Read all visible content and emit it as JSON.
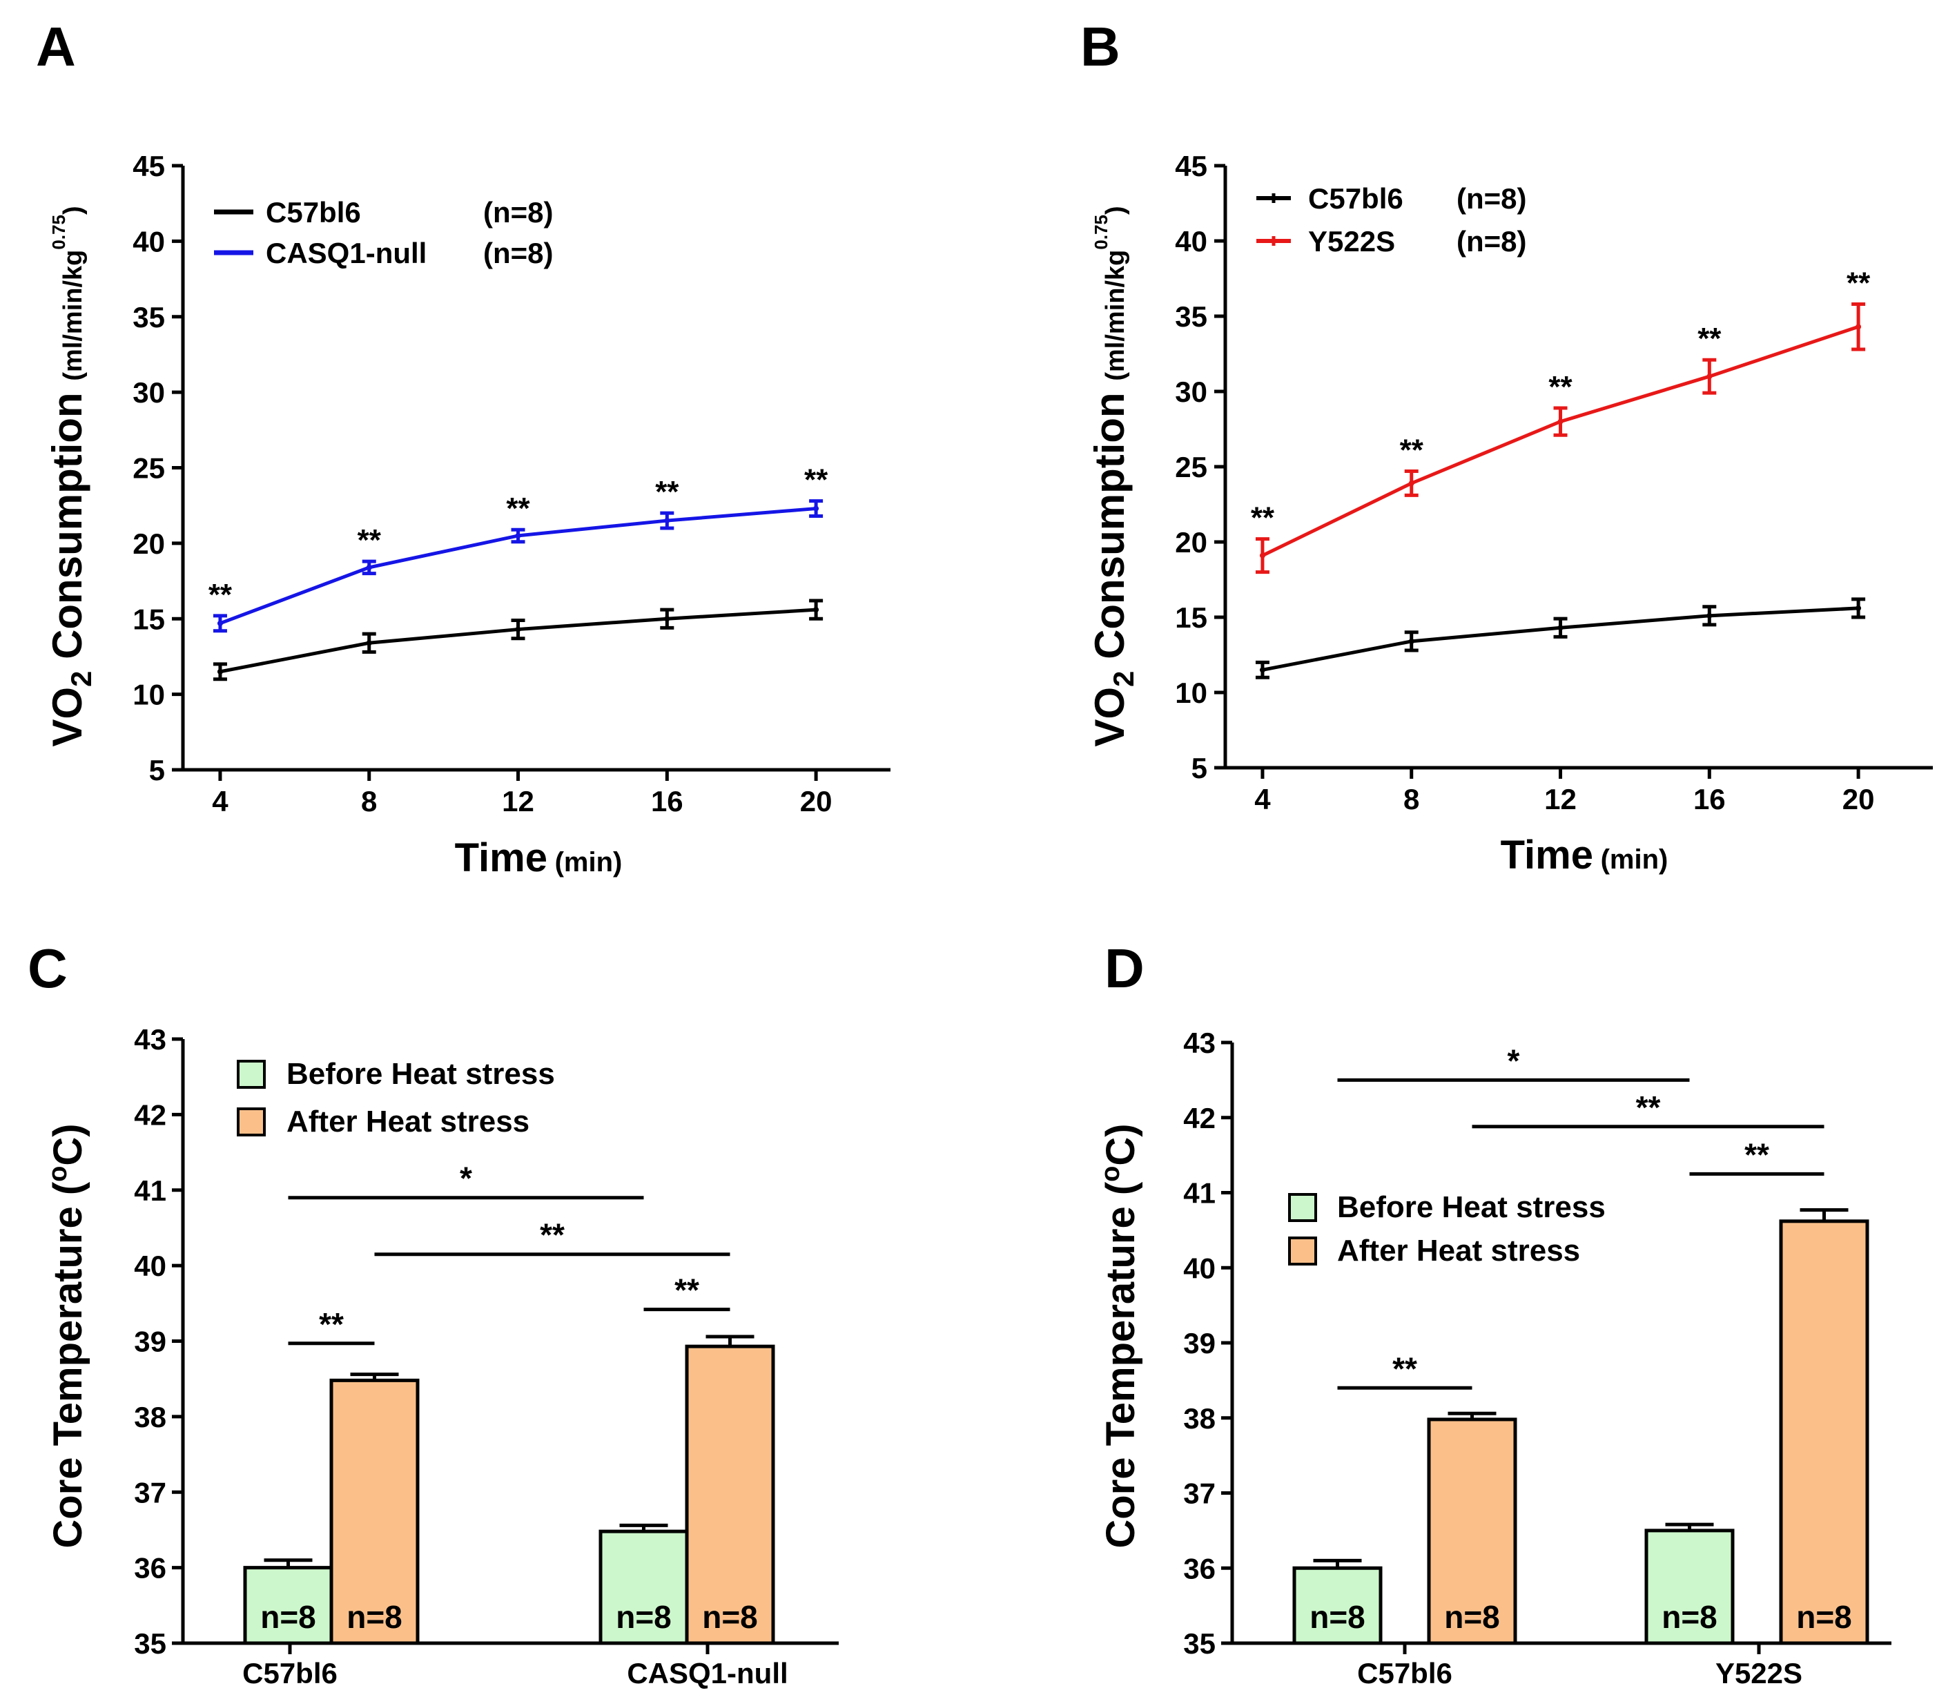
{
  "colors": {
    "wt": "#000000",
    "casq1": "#1515e6",
    "y522s": "#e81818",
    "before_fill": "#ccf7cc",
    "after_fill": "#fbc08a",
    "axis": "#000000"
  },
  "chart_data": [
    {
      "panel": "A",
      "type": "line",
      "ylabel_main": "VO",
      "ylabel_sub": "2",
      "ylabel_rest": " Consumption ",
      "ylabel_units": "(ml/min/kg",
      "ylabel_units_sup": "0.75",
      "ylabel_units_close": ")",
      "xlabel_main": "Time",
      "xlabel_units": "(min)",
      "x": [
        4,
        8,
        12,
        16,
        20
      ],
      "xlim": [
        3,
        22
      ],
      "ylim": [
        5,
        45
      ],
      "yticks": [
        5,
        10,
        15,
        20,
        25,
        30,
        35,
        40,
        45
      ],
      "xticks": [
        4,
        8,
        12,
        16,
        20
      ],
      "series": [
        {
          "name": "C57bl6",
          "n": "(n=8)",
          "color_key": "wt",
          "values": [
            11.5,
            13.4,
            14.3,
            15.0,
            15.6
          ],
          "errors": [
            0.5,
            0.6,
            0.6,
            0.6,
            0.6
          ]
        },
        {
          "name": "CASQ1-null",
          "n": "(n=8)",
          "color_key": "casq1",
          "values": [
            14.7,
            18.4,
            20.5,
            21.5,
            22.3
          ],
          "errors": [
            0.5,
            0.4,
            0.4,
            0.5,
            0.5
          ]
        }
      ],
      "significance": [
        "**",
        "**",
        "**",
        "**",
        "**"
      ]
    },
    {
      "panel": "B",
      "type": "line",
      "ylabel_main": "VO",
      "ylabel_sub": "2",
      "ylabel_rest": " Consumption ",
      "ylabel_units": "(ml/min/kg",
      "ylabel_units_sup": "0.75",
      "ylabel_units_close": ")",
      "xlabel_main": "Time",
      "xlabel_units": "(min)",
      "x": [
        4,
        8,
        12,
        16,
        20
      ],
      "xlim": [
        3,
        22
      ],
      "ylim": [
        5,
        45
      ],
      "yticks": [
        5,
        10,
        15,
        20,
        25,
        30,
        35,
        40,
        45
      ],
      "xticks": [
        4,
        8,
        12,
        16,
        20
      ],
      "series": [
        {
          "name": "C57bl6",
          "n": "(n=8)",
          "color_key": "wt",
          "values": [
            11.5,
            13.4,
            14.3,
            15.1,
            15.6
          ],
          "errors": [
            0.5,
            0.6,
            0.6,
            0.6,
            0.6
          ]
        },
        {
          "name": "Y522S",
          "n": "(n=8)",
          "color_key": "y522s",
          "values": [
            19.1,
            23.9,
            28.0,
            31.0,
            34.3
          ],
          "errors": [
            1.1,
            0.8,
            0.9,
            1.1,
            1.5
          ]
        }
      ],
      "significance": [
        "**",
        "**",
        "**",
        "**",
        "**"
      ]
    },
    {
      "panel": "C",
      "type": "bar",
      "ylabel": "Core Temperature (°C)",
      "ylabel_pre": "Core Temperature (",
      "ylabel_deg": "o",
      "ylabel_post": "C)",
      "ylim": [
        35,
        43
      ],
      "yticks": [
        35,
        36,
        37,
        38,
        39,
        40,
        41,
        42,
        43
      ],
      "categories": [
        "C57bl6",
        "CASQ1-null"
      ],
      "series": [
        {
          "name": "Before Heat stress",
          "color_key": "before_fill",
          "values": [
            36.0,
            36.48
          ],
          "errors": [
            0.1,
            0.08
          ],
          "n_labels": [
            "n=8",
            "n=8"
          ]
        },
        {
          "name": "After Heat stress",
          "color_key": "after_fill",
          "values": [
            38.48,
            38.93
          ],
          "errors": [
            0.08,
            0.13
          ],
          "n_labels": [
            "n=8",
            "n=8"
          ]
        }
      ],
      "brackets": [
        {
          "from": [
            0,
            0
          ],
          "to": [
            0,
            1
          ],
          "y": 38.97,
          "label": "**"
        },
        {
          "from": [
            1,
            0
          ],
          "to": [
            1,
            1
          ],
          "y": 39.42,
          "label": "**"
        },
        {
          "from": [
            0,
            0
          ],
          "to": [
            1,
            0
          ],
          "y": 40.9,
          "label": "*"
        },
        {
          "from": [
            0,
            1
          ],
          "to": [
            1,
            1
          ],
          "y": 40.15,
          "label": "**"
        }
      ]
    },
    {
      "panel": "D",
      "type": "bar",
      "ylabel": "Core Temperature (°C)",
      "ylabel_pre": "Core Temperature (",
      "ylabel_deg": "o",
      "ylabel_post": "C)",
      "ylim": [
        35,
        43
      ],
      "yticks": [
        35,
        36,
        37,
        38,
        39,
        40,
        41,
        42,
        43
      ],
      "categories": [
        "C57bl6",
        "Y522S"
      ],
      "series": [
        {
          "name": "Before Heat stress",
          "color_key": "before_fill",
          "values": [
            36.0,
            36.5
          ],
          "errors": [
            0.1,
            0.08
          ],
          "n_labels": [
            "n=8",
            "n=8"
          ]
        },
        {
          "name": "After Heat stress",
          "color_key": "after_fill",
          "values": [
            37.98,
            40.62
          ],
          "errors": [
            0.08,
            0.15
          ],
          "n_labels": [
            "n=8",
            "n=8"
          ]
        }
      ],
      "brackets": [
        {
          "from": [
            0,
            0
          ],
          "to": [
            0,
            1
          ],
          "y": 38.4,
          "label": "**"
        },
        {
          "from": [
            1,
            0
          ],
          "to": [
            1,
            1
          ],
          "y": 41.25,
          "label": "**"
        },
        {
          "from": [
            0,
            0
          ],
          "to": [
            1,
            0
          ],
          "y": 42.5,
          "label": "*"
        },
        {
          "from": [
            0,
            1
          ],
          "to": [
            1,
            1
          ],
          "y": 41.88,
          "label": "**"
        }
      ]
    }
  ]
}
